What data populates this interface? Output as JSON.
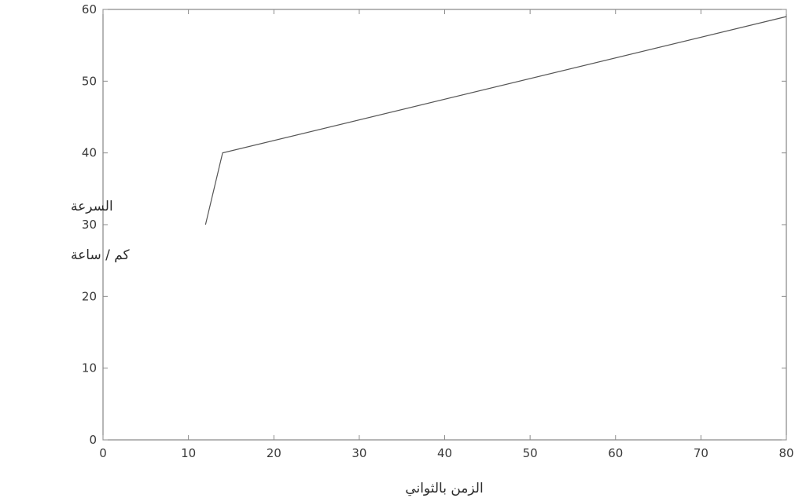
{
  "chart_data": {
    "type": "line",
    "title": "",
    "xlabel": "الزمن بالثواني",
    "ylabel_line1": "السرعة",
    "ylabel_line2": "كم / ساعة",
    "xlim": [
      0,
      80
    ],
    "ylim": [
      0,
      60
    ],
    "xticks": [
      0,
      10,
      20,
      30,
      40,
      50,
      60,
      70,
      80
    ],
    "yticks": [
      0,
      10,
      20,
      30,
      40,
      50,
      60
    ],
    "grid": false,
    "legend": "none",
    "series": [
      {
        "points": [
          {
            "x": 12,
            "y": 30
          },
          {
            "x": 14,
            "y": 40
          },
          {
            "x": 80,
            "y": 59
          }
        ],
        "color": "#555555"
      }
    ]
  }
}
